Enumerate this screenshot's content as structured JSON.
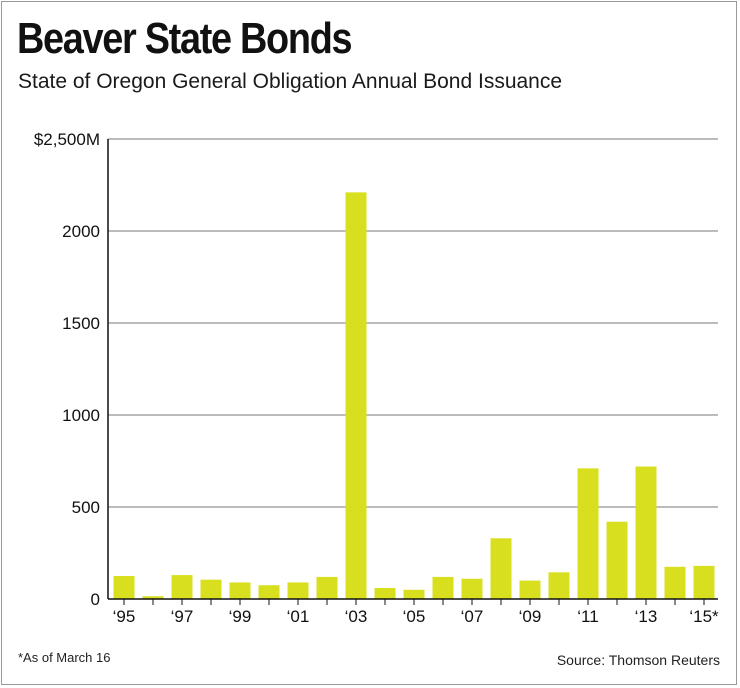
{
  "title": "Beaver State Bonds",
  "subtitle": "State of Oregon General Obligation Annual Bond Issuance",
  "footnote": "*As of March 16",
  "source": "Source: Thomson Reuters",
  "colors": {
    "bar": "#d8df1f",
    "grid": "#7a7a7a",
    "axis": "#111111"
  },
  "chart_data": {
    "type": "bar",
    "title": "Beaver State Bonds",
    "subtitle": "State of Oregon General Obligation Annual Bond Issuance",
    "xlabel": "",
    "ylabel": "",
    "ylim": [
      0,
      2500
    ],
    "grid": true,
    "y_ticks": [
      {
        "value": 0,
        "label": "0"
      },
      {
        "value": 500,
        "label": "500"
      },
      {
        "value": 1000,
        "label": "1000"
      },
      {
        "value": 1500,
        "label": "1500"
      },
      {
        "value": 2000,
        "label": "2000"
      },
      {
        "value": 2500,
        "label": "$2,500M"
      }
    ],
    "categories": [
      "1995",
      "1996",
      "1997",
      "1998",
      "1999",
      "2000",
      "2001",
      "2002",
      "2003",
      "2004",
      "2005",
      "2006",
      "2007",
      "2008",
      "2009",
      "2010",
      "2011",
      "2012",
      "2013",
      "2014",
      "2015"
    ],
    "x_tick_labels": [
      "‘95",
      "",
      "‘97",
      "",
      "‘99",
      "",
      "‘01",
      "",
      "‘03",
      "",
      "‘05",
      "",
      "‘07",
      "",
      "‘09",
      "",
      "‘11",
      "",
      "‘13",
      "",
      "‘15*"
    ],
    "values": [
      125,
      15,
      130,
      105,
      90,
      75,
      90,
      120,
      2210,
      60,
      50,
      120,
      110,
      330,
      100,
      145,
      710,
      420,
      720,
      175,
      180
    ]
  }
}
